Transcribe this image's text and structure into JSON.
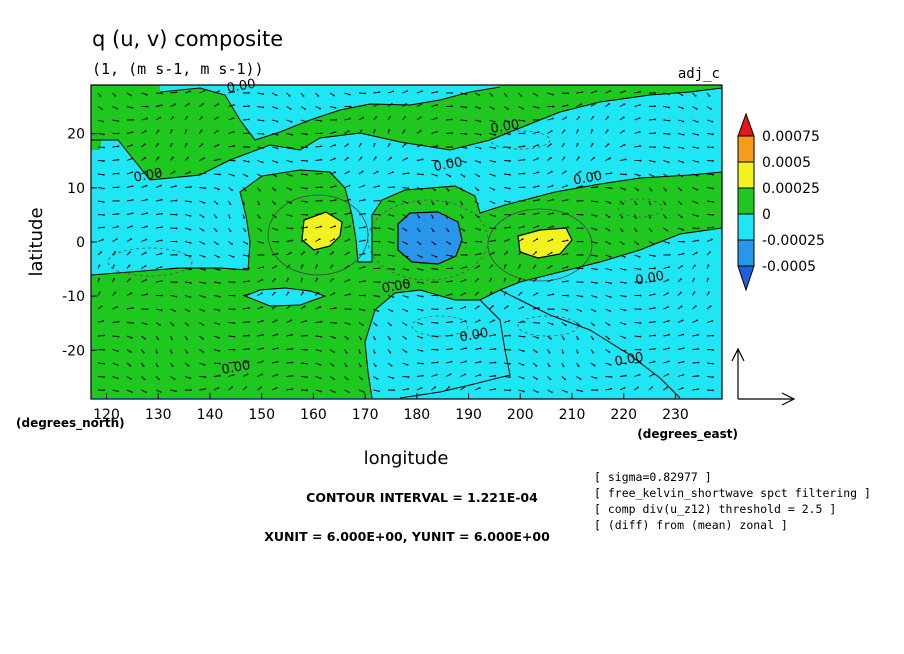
{
  "chart_data": {
    "type": "contour",
    "title": "q (u, v) composite",
    "subtitle": "(1, (m s-1, m s-1))",
    "corner_label": "adj_c",
    "xlabel": "longitude",
    "ylabel": "latitude",
    "x_unit_label": "(degrees_east)",
    "y_unit_label": "(degrees_north)",
    "xlim": [
      117,
      239
    ],
    "ylim": [
      -29,
      29
    ],
    "xticks": [
      120,
      130,
      140,
      150,
      160,
      170,
      180,
      190,
      200,
      210,
      220,
      230
    ],
    "yticks": [
      20,
      10,
      0,
      -10,
      -20
    ],
    "grid": false,
    "legend_position": "right",
    "colorbar": {
      "levels": [
        "0.00075",
        "0.0005",
        "0.00025",
        "0",
        "-0.00025",
        "-0.0005"
      ],
      "colors": [
        "#e8141b",
        "#f59c1a",
        "#f2f21e",
        "#1ec81e",
        "#1ee6f5",
        "#2896eb",
        "#1f5fd9"
      ]
    },
    "contour_labels": [
      {
        "text": "0.00",
        "lon": 146,
        "lat": 29
      },
      {
        "text": "0.00",
        "lon": 197,
        "lat": 21.5
      },
      {
        "text": "0.00",
        "lon": 128,
        "lat": 12.5
      },
      {
        "text": "0.00",
        "lon": 186,
        "lat": 14.5
      },
      {
        "text": "0.00",
        "lon": 213,
        "lat": 12
      },
      {
        "text": "0.00",
        "lon": 225,
        "lat": -6.5
      },
      {
        "text": "0.00",
        "lon": 176,
        "lat": -8
      },
      {
        "text": "0.00",
        "lon": 191,
        "lat": -17
      },
      {
        "text": "0.00",
        "lon": 221,
        "lat": -21.5
      },
      {
        "text": "0.00",
        "lon": 145,
        "lat": -23
      }
    ],
    "positive_maxima": [
      {
        "lon": 160,
        "lat": 1.5,
        "level": "0.00025"
      },
      {
        "lon": 204,
        "lat": -0.5,
        "level": "0.00025"
      }
    ],
    "negative_minimum": {
      "lon": 181,
      "lat": 0,
      "level": "-0.00025"
    },
    "reference_vector": {
      "u": 6.0,
      "v": 6.0
    }
  },
  "footer": {
    "contour_interval": "CONTOUR INTERVAL = 1.221E-04",
    "units": "XUNIT = 6.000E+00, YUNIT = 6.000E+00"
  },
  "notes": [
    "[ sigma=0.82977 ]",
    "[ free_kelvin_shortwave spct filtering ]",
    "[ comp div(u_z12) threshold = 2.5 ]",
    "[ (diff) from (mean) zonal ]"
  ],
  "colors": {
    "cyan": "#1ee6f5",
    "green": "#1ec81e",
    "yellow": "#f2f21e",
    "blue": "#2896eb"
  }
}
